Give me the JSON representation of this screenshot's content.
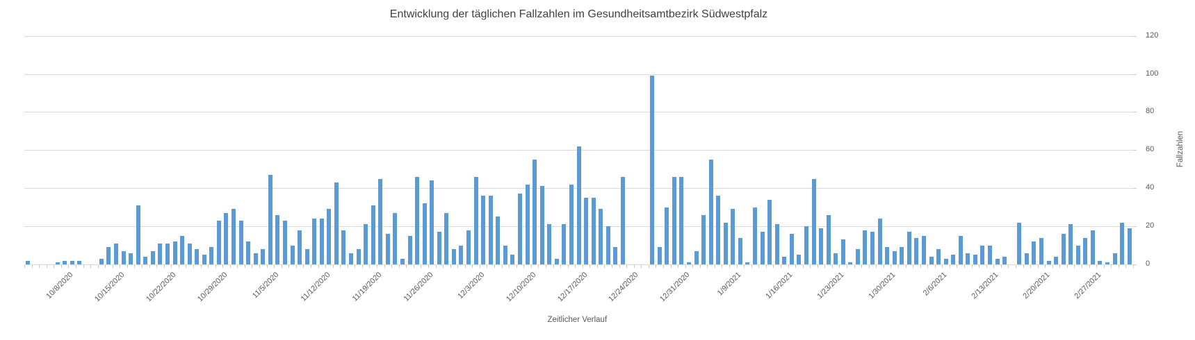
{
  "chart_data": {
    "type": "bar",
    "title": "Entwicklung der täglichen Fallzahlen im Gesundheitsamtbezirk Südwestpfalz",
    "xlabel": "Zeitlicher Verlauf",
    "ylabel": "Fallzahlen",
    "ylim": [
      0,
      120
    ],
    "y_ticks": [
      0,
      20,
      40,
      60,
      80,
      100,
      120
    ],
    "grid": "horizontal",
    "legend_position": "none",
    "bar_color": "#5b9bd5",
    "gridline_color": "#d9d9d9",
    "x_tick_labels": [
      "10/8/2020",
      "10/15/2020",
      "10/22/2020",
      "10/29/2020",
      "11/5/2020",
      "11/12/2020",
      "11/19/2020",
      "11/26/2020",
      "12/3/2020",
      "12/10/2020",
      "12/17/2020",
      "12/24/2020",
      "12/31/2020",
      "1/9/2021",
      "1/16/2021",
      "1/23/2021",
      "1/30/2021",
      "2/6/2021",
      "2/13/2021",
      "2/20/2021",
      "2/27/2021"
    ],
    "label_start_index": 5,
    "label_every": 7,
    "values": [
      2,
      0,
      0,
      0,
      1,
      2,
      2,
      2,
      0,
      0,
      3,
      9,
      11,
      7,
      6,
      31,
      4,
      7,
      11,
      11,
      12,
      15,
      11,
      8,
      5,
      9,
      23,
      27,
      29,
      23,
      12,
      6,
      8,
      47,
      26,
      23,
      10,
      18,
      8,
      24,
      24,
      29,
      43,
      18,
      6,
      8,
      21,
      31,
      45,
      16,
      27,
      3,
      15,
      46,
      32,
      44,
      17,
      27,
      8,
      10,
      18,
      46,
      36,
      36,
      25,
      10,
      5,
      37,
      42,
      55,
      41,
      21,
      3,
      21,
      42,
      62,
      35,
      35,
      29,
      20,
      9,
      46,
      0,
      0,
      0,
      99,
      9,
      30,
      46,
      46,
      1,
      7,
      26,
      55,
      36,
      22,
      29,
      14,
      1,
      30,
      17,
      34,
      21,
      4,
      16,
      5,
      20,
      45,
      19,
      26,
      6,
      13,
      1,
      8,
      18,
      17,
      24,
      9,
      7,
      9,
      17,
      14,
      15,
      4,
      8,
      3,
      5,
      15,
      6,
      5,
      10,
      10,
      3,
      4,
      0,
      22,
      6,
      12,
      14,
      2,
      4,
      16,
      21,
      10,
      14,
      18,
      2,
      1,
      6,
      22,
      19
    ]
  }
}
